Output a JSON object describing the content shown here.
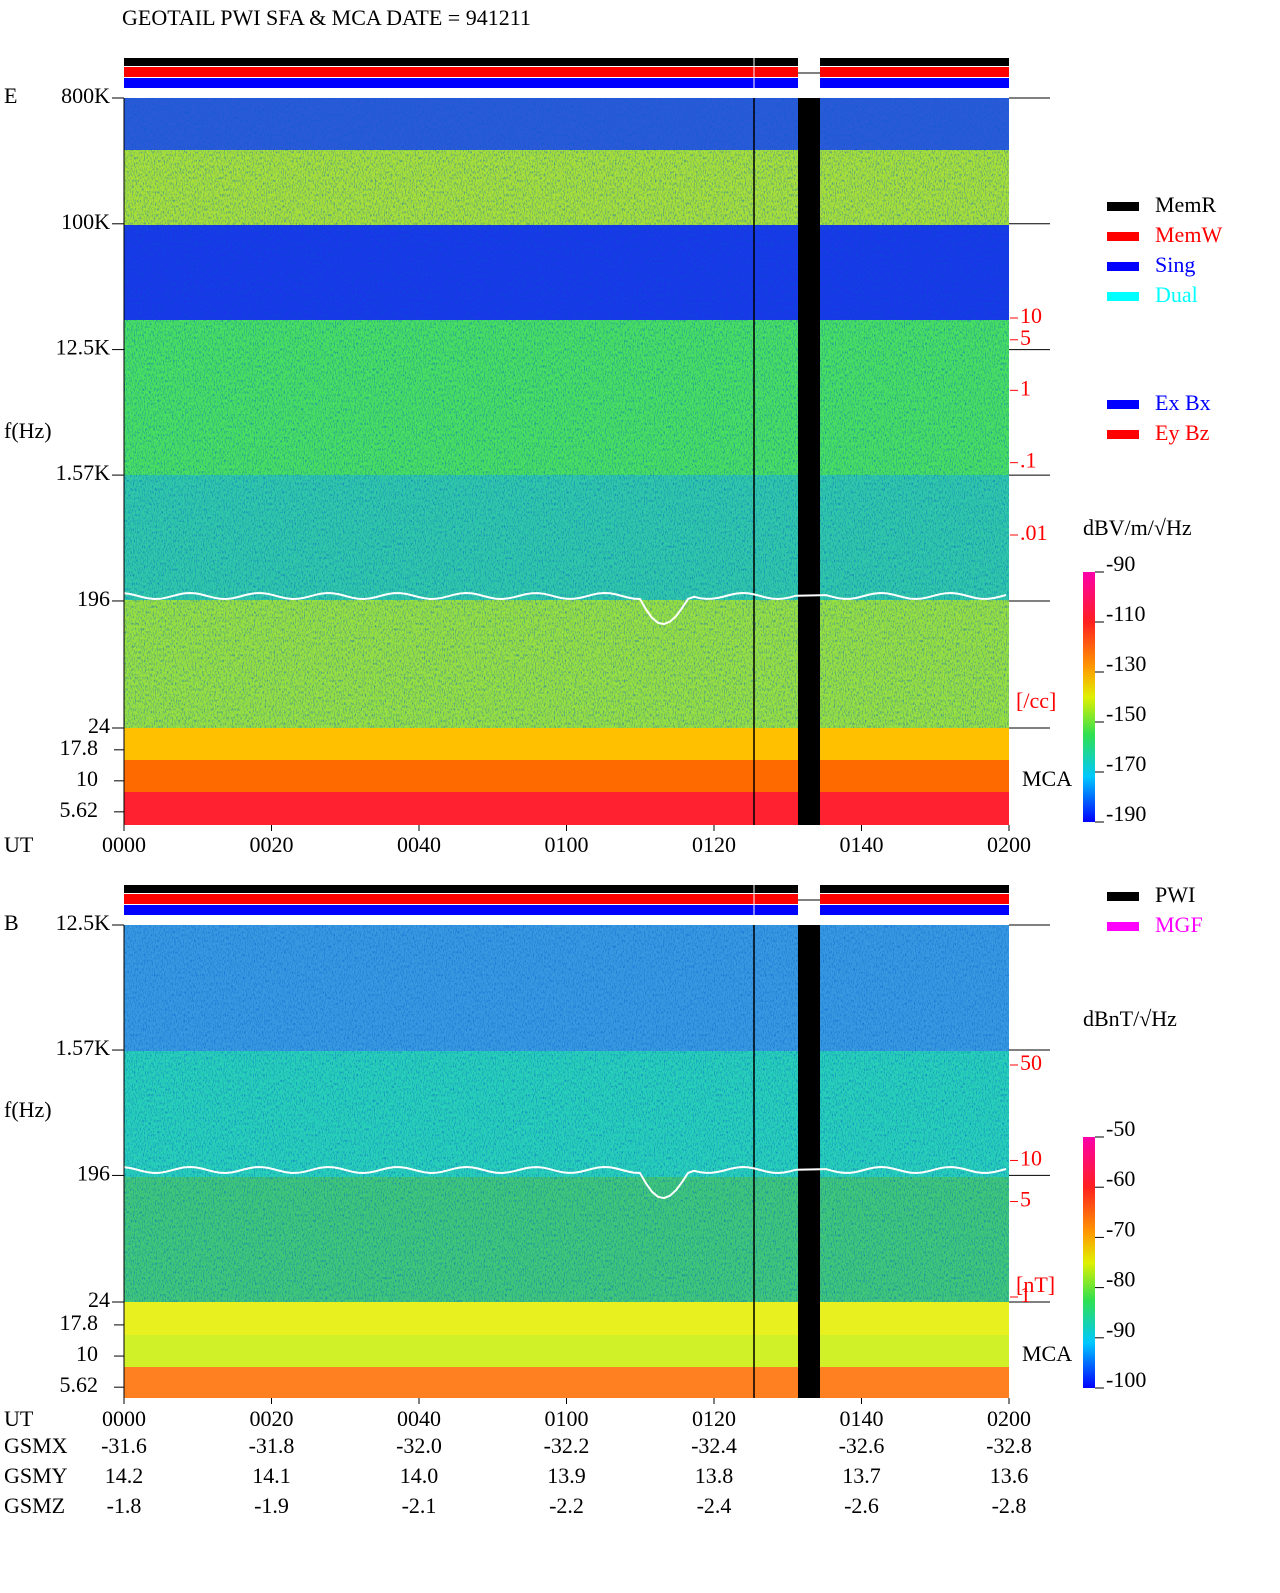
{
  "title": "GEOTAIL  PWI SFA & MCA   DATE = 941211",
  "chart_data": [
    {
      "type": "spectrogram",
      "label": "E",
      "ylabel": "f(Hz)",
      "xlabel": "UT",
      "log": true,
      "ylim": [
        24,
        800000
      ],
      "yticks": [
        {
          "value": 800000,
          "label": "800K"
        },
        {
          "value": 100000,
          "label": "100K"
        },
        {
          "value": 12500,
          "label": "12.5K"
        },
        {
          "value": 1570,
          "label": "1.57K"
        },
        196,
        24
      ],
      "mca_label": "MCA",
      "mca_ylim": [
        4.4,
        26.7
      ],
      "mca_yticks": [
        17.8,
        10,
        5.62
      ],
      "xlim": [
        0,
        120
      ],
      "xticks": [
        {
          "value": 0,
          "label": "0000"
        },
        {
          "value": 20,
          "label": "0020"
        },
        {
          "value": 40,
          "label": "0040"
        },
        {
          "value": 60,
          "label": "0100"
        },
        {
          "value": 80,
          "label": "0120"
        },
        {
          "value": 100,
          "label": "0140"
        },
        {
          "value": 120,
          "label": "0200"
        }
      ],
      "colorbar": {
        "label": "dBV/m/√Hz",
        "clim": [
          -190,
          -90
        ],
        "ticks": [
          -90,
          -110,
          -130,
          -150,
          -170,
          -190
        ]
      },
      "density": {
        "label": "[/cc]",
        "lim": [
          0.01,
          10
        ],
        "ticks": [
          10,
          5,
          1,
          {
            "value": 0.1,
            "label": ".1"
          },
          {
            "value": 0.01,
            "label": ".01"
          }
        ]
      },
      "legend": [
        {
          "name": "MemR",
          "color": "#000000"
        },
        {
          "name": "MemW",
          "color": "#ff0000"
        },
        {
          "name": "Sing",
          "color": "#0000ff"
        },
        {
          "name": "Dual",
          "color": "#00ffff"
        }
      ],
      "legend2": [
        {
          "name": "Ex Bx",
          "color": "#0000ff"
        },
        {
          "name": "Ey Bz",
          "color": "#ff0000"
        }
      ]
    },
    {
      "type": "spectrogram",
      "label": "B",
      "ylabel": "f(Hz)",
      "xlabel": "UT",
      "log": true,
      "ylim": [
        24,
        12500
      ],
      "yticks": [
        {
          "value": 12500,
          "label": "12.5K"
        },
        {
          "value": 1570,
          "label": "1.57K"
        },
        196,
        24
      ],
      "mca_label": "MCA",
      "mca_ylim": [
        4.6,
        27.2
      ],
      "mca_yticks": [
        17.8,
        10,
        5.62
      ],
      "xlim": [
        0,
        120
      ],
      "xticks": [
        {
          "value": 0,
          "label": "0000"
        },
        {
          "value": 20,
          "label": "0020"
        },
        {
          "value": 40,
          "label": "0040"
        },
        {
          "value": 60,
          "label": "0100"
        },
        {
          "value": 80,
          "label": "0120"
        },
        {
          "value": 100,
          "label": "0140"
        },
        {
          "value": 120,
          "label": "0200"
        }
      ],
      "colorbar": {
        "label": "dBnT/√Hz",
        "clim": [
          -100,
          -50
        ],
        "ticks": [
          -50,
          -60,
          -70,
          -80,
          -90,
          -100
        ]
      },
      "density": {
        "label": "[nT]",
        "lim": [
          1,
          50
        ],
        "ticks": [
          50,
          10,
          5,
          1
        ]
      },
      "legend": [
        {
          "name": "PWI",
          "color": "#000000"
        },
        {
          "name": "MGF",
          "color": "#ff00ff"
        }
      ]
    }
  ],
  "orbit": {
    "rows": [
      {
        "label": "GSMX",
        "values": [
          "-31.6",
          "-31.8",
          "-32.0",
          "-32.2",
          "-32.4",
          "-32.6",
          "-32.8"
        ]
      },
      {
        "label": "GSMY",
        "values": [
          "14.2",
          "14.1",
          "14.0",
          "13.9",
          "13.8",
          "13.7",
          "13.6"
        ]
      },
      {
        "label": "GSMZ",
        "values": [
          "-1.8",
          "-1.9",
          "-2.1",
          "-2.2",
          "-2.4",
          "-2.6",
          "-2.8"
        ]
      }
    ]
  }
}
